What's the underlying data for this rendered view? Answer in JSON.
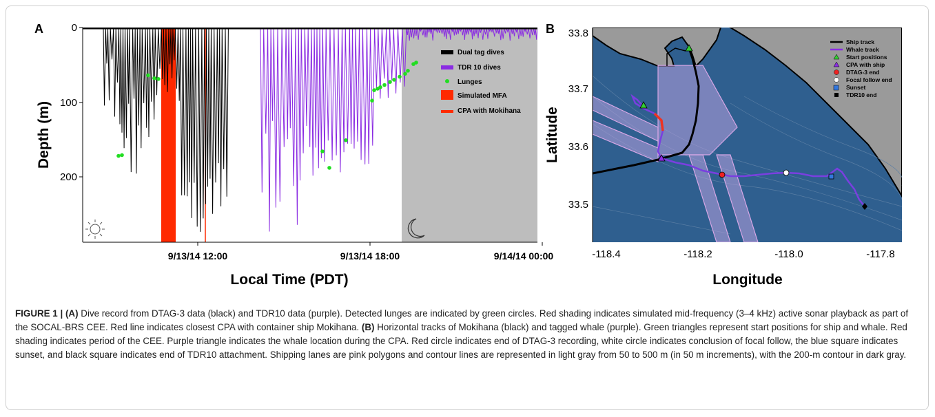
{
  "panel_a": {
    "label": "A",
    "y_axis_title": "Depth (m)",
    "x_axis_title": "Local Time (PDT)",
    "y_ticks": [
      "0",
      "100",
      "200"
    ],
    "x_ticks": [
      "9/13/14 12:00",
      "9/13/14 18:00",
      "9/14/14 00:00"
    ],
    "legend": [
      {
        "label": "Dual tag dives",
        "color": "#000000",
        "swatch": "bar"
      },
      {
        "label": "TDR 10 dives",
        "color": "#8a2be2",
        "swatch": "bar"
      },
      {
        "label": "Lunges",
        "color": "#22dd22",
        "swatch": "dot"
      },
      {
        "label": "Simulated MFA",
        "color": "#ff2a00",
        "swatch": "block"
      },
      {
        "label": "CPA with Mokihana",
        "color": "#ff2a00",
        "swatch": "line"
      }
    ],
    "sun_icon": "sun-icon",
    "moon_icon": "moon-icon"
  },
  "panel_b": {
    "label": "B",
    "y_axis_title": "Latitude",
    "x_axis_title": "Longitude",
    "y_ticks": [
      "33.8",
      "33.7",
      "33.6",
      "33.5"
    ],
    "x_ticks": [
      "-118.4",
      "-118.2",
      "-118.0",
      "-117.8"
    ],
    "legend": [
      {
        "label": "Ship track",
        "color": "#000000",
        "swatch": "line"
      },
      {
        "label": "Whale track",
        "color": "#8a2be2",
        "swatch": "line"
      },
      {
        "label": "Start positions",
        "color": "#33cc33",
        "swatch": "triangle"
      },
      {
        "label": "CPA with ship",
        "color": "#8a2be2",
        "swatch": "triangle"
      },
      {
        "label": "DTAG-3 end",
        "color": "#ee2222",
        "swatch": "circle"
      },
      {
        "label": "Focal follow end",
        "color": "#ffffff",
        "swatch": "circle"
      },
      {
        "label": "Sunset",
        "color": "#3377dd",
        "swatch": "square"
      },
      {
        "label": "TDR10 end",
        "color": "#000000",
        "swatch": "diamond"
      }
    ]
  },
  "colors": {
    "dtag": "#000000",
    "tdr": "#8a2be2",
    "lunge": "#22dd22",
    "mfa": "#ff2a00",
    "night": "#bdbdbd",
    "sea": "#2f5f8f",
    "land": "#9a9a9a",
    "lanes": "#b8a0e0"
  },
  "caption": {
    "figure_label": "FIGURE 1 |",
    "a_tag": "(A)",
    "a_text": "Dive record from DTAG-3 data (black) and TDR10 data (purple). Detected lunges are indicated by green circles. Red shading indicates simulated mid-frequency (3–4 kHz) active sonar playback as part of the SOCAL-BRS CEE. Red line indicates closest CPA with container ship Mokihana.",
    "b_tag": "(B)",
    "b_text": "Horizontal tracks of Mokihana (black) and tagged whale (purple). Green triangles represent start positions for ship and whale. Red shading indicates period of the CEE. Purple triangle indicates the whale location during the CPA. Red circle indicates end of DTAG-3 recording, white circle indicates conclusion of focal follow, the blue square indicates sunset, and black square indicates end of TDR10 attachment. Shipping lanes are pink polygons and contour lines are represented in light gray from 50 to 500 m (in 50 m increments), with the 200-m contour in dark gray."
  }
}
